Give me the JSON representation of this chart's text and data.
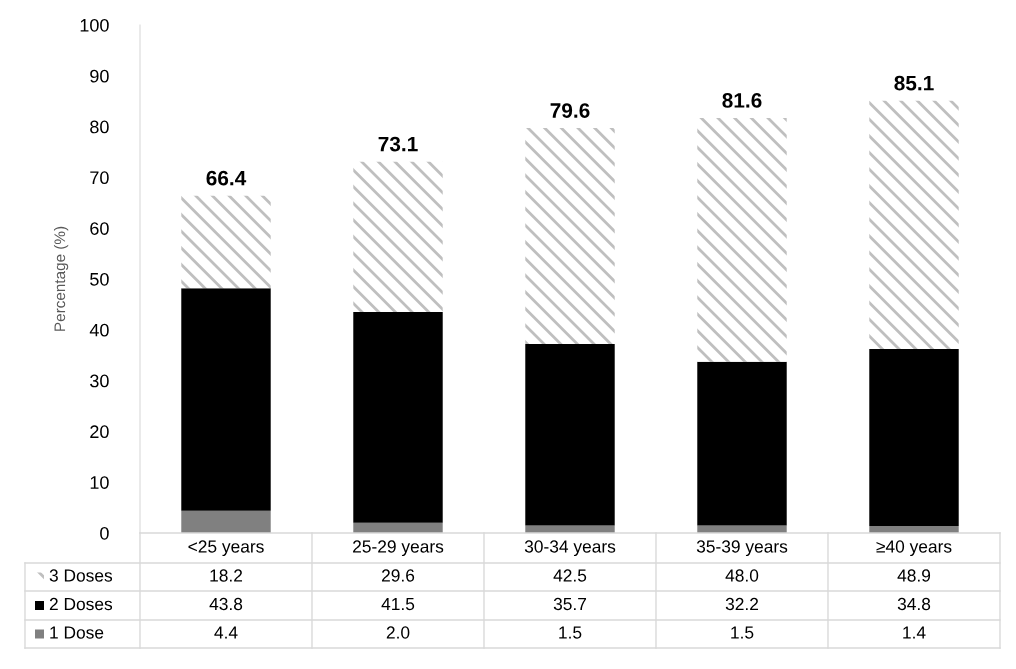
{
  "chart_data": {
    "type": "bar",
    "stacked": true,
    "ylabel": "Percentage (%)",
    "categories": [
      "<25 years",
      "25-29 years",
      "30-34 years",
      "35-39 years",
      "≥40 years"
    ],
    "series": [
      {
        "name": "1 Dose",
        "color": "#808080",
        "values": [
          4.4,
          2.0,
          1.5,
          1.5,
          1.4
        ],
        "value_labels": [
          "4.4",
          "2.0",
          "1.5",
          "1.5",
          "1.4"
        ]
      },
      {
        "name": "2 Doses",
        "color": "#000000",
        "values": [
          43.8,
          41.5,
          35.7,
          32.2,
          34.8
        ],
        "value_labels": [
          "43.8",
          "41.5",
          "35.7",
          "32.2",
          "34.8"
        ]
      },
      {
        "name": "3 Doses",
        "color": "#bfbfbf",
        "values": [
          18.2,
          29.6,
          42.5,
          48.0,
          48.9
        ],
        "value_labels": [
          "18.2",
          "29.6",
          "42.5",
          "48.0",
          "48.9"
        ]
      }
    ],
    "totals": [
      "66.4",
      "73.1",
      "79.6",
      "81.6",
      "85.1"
    ],
    "ylim": [
      0,
      100
    ],
    "yticks": [
      0,
      10,
      20,
      30,
      40,
      50,
      60,
      70,
      80,
      90,
      100
    ],
    "grid": false,
    "legend": "bottom left"
  }
}
